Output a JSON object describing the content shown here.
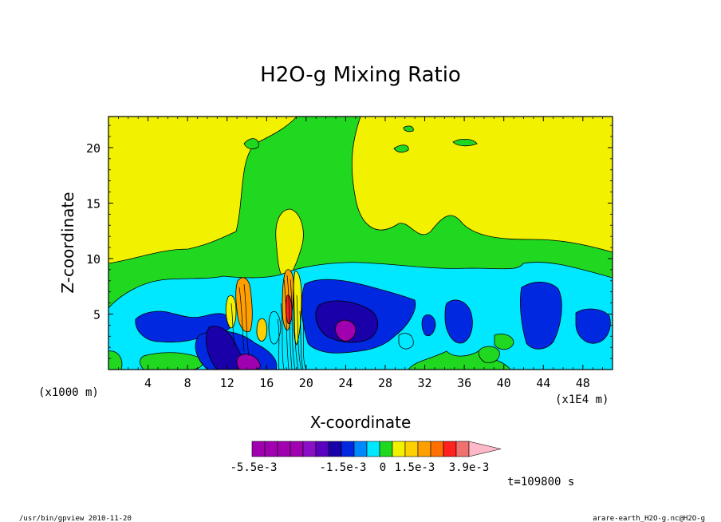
{
  "chart_data": {
    "type": "contour",
    "title": "H2O-g Mixing Ratio",
    "xlabel": "X-coordinate",
    "ylabel": "Z-coordinate",
    "x_unit": "(x1E4 m)",
    "y_unit": "(x1000 m)",
    "xlim": [
      0,
      51
    ],
    "ylim": [
      0,
      22.8
    ],
    "x_ticks": [
      4,
      8,
      12,
      16,
      20,
      24,
      28,
      32,
      36,
      40,
      44,
      48
    ],
    "x_tick_labels": [
      "4",
      "8",
      "12",
      "16",
      "20",
      "24",
      "28",
      "32",
      "36",
      "40",
      "44",
      "48"
    ],
    "y_ticks": [
      5,
      10,
      15,
      20
    ],
    "y_tick_labels": [
      "5",
      "10",
      "15",
      "20"
    ],
    "time_label": "t=109800 s",
    "colorbar": {
      "colors": [
        "#a000b0",
        "#a000b0",
        "#a000b0",
        "#a000b0",
        "#8a10c8",
        "#5a00c0",
        "#1a00a8",
        "#0028e0",
        "#0088ff",
        "#00e8ff",
        "#20d820",
        "#f2f200",
        "#ffd000",
        "#ffa000",
        "#ff7000",
        "#ff2020",
        "#f07070",
        "#ffb8c8"
      ],
      "labels": [
        "-5.5e-3",
        "-1.5e-3",
        "0",
        "1.5e-3",
        "3.9e-3"
      ]
    },
    "colors": {
      "background_level": "#f2f200",
      "green": "#20d820",
      "cyan": "#00e8ff",
      "blue": "#0028e0",
      "dark_blue": "#1a00a8",
      "purple": "#a000b0",
      "orange": "#ffa000",
      "red": "#ff2020"
    }
  },
  "footer": {
    "left": "/usr/bin/gpview  2010-11-20",
    "right": "arare-earth_H2O-g.nc@H2O-g"
  }
}
